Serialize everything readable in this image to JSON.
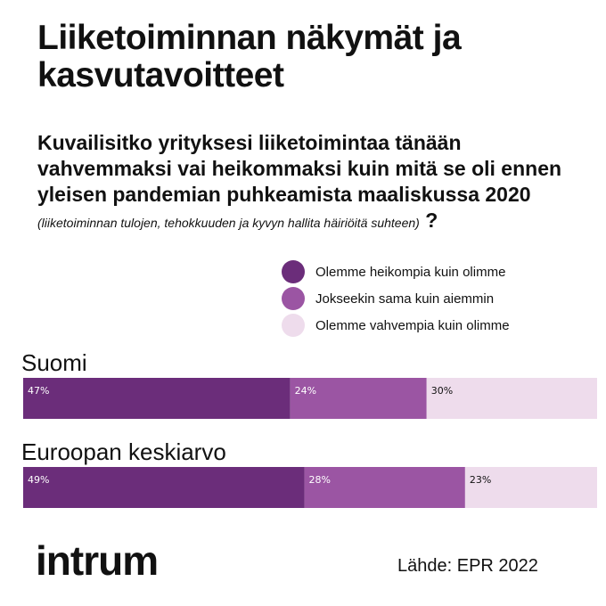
{
  "header": {
    "title": "Liiketoiminnan näkymät ja kasvutavoitteet",
    "question": "Kuvailisitko yrityksesi liiketoimintaa tänään vahvemmaksi vai heikommaksi kuin mitä se oli ennen yleisen pandemian puhkeamista maaliskussa 2020",
    "question_note": "(liiketoiminnan tulojen, tehokkuuden ja kyvyn hallita häiriöitä suhteen)",
    "question_mark": "?"
  },
  "chart_data": {
    "type": "bar",
    "orientation": "horizontal-stacked",
    "categories": [
      "Suomi",
      "Euroopan keskiarvo"
    ],
    "series": [
      {
        "name": "Olemme heikompia kuin olimme",
        "values": [
          47,
          49
        ],
        "labels": [
          "47%",
          "49%"
        ],
        "color": "#6b2d7a"
      },
      {
        "name": "Jokseekin sama kuin aiemmin",
        "values": [
          24,
          28
        ],
        "labels": [
          "24%",
          "28%"
        ],
        "color": "#9b55a3"
      },
      {
        "name": "Olemme vahvempia kuin olimme",
        "values": [
          30,
          23
        ],
        "labels": [
          "30%",
          "23%"
        ],
        "color": "#eedcec"
      }
    ],
    "legend_position": "top-right",
    "grid": false
  },
  "colors": {
    "label_light": "#ffffff",
    "label_dark": "#111111"
  },
  "footer": {
    "logo_text": "intrum",
    "source": "Lähde: EPR 2022"
  }
}
